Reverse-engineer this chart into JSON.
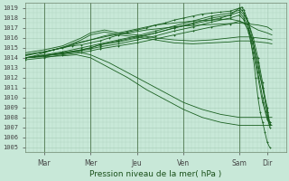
{
  "bg_color": "#c8e8d8",
  "grid_color": "#a8ceb8",
  "line_color": "#1a6020",
  "ylabel_ticks": [
    1005,
    1006,
    1007,
    1008,
    1009,
    1010,
    1011,
    1012,
    1013,
    1014,
    1015,
    1016,
    1017,
    1018,
    1019
  ],
  "xlabels": [
    "Mar",
    "Mer",
    "Jeu",
    "Ven",
    "Sam",
    "Dir"
  ],
  "xlabel": "Pression niveau de la mer( hPa )",
  "ymin": 1004.5,
  "ymax": 1019.5,
  "xmin": 0.0,
  "xmax": 5.6,
  "xtick_positions": [
    0.4,
    1.4,
    2.4,
    3.4,
    4.6,
    5.2
  ],
  "vline_positions": [
    0.4,
    1.4,
    2.4,
    3.4,
    4.6
  ],
  "series": [
    {
      "x": [
        0.0,
        0.2,
        0.4,
        0.6,
        0.8,
        1.0,
        1.2,
        1.4,
        1.6,
        1.8,
        2.0,
        2.2,
        2.4,
        2.6,
        2.8,
        3.0,
        3.2,
        3.4,
        3.6,
        3.8,
        4.0,
        4.2,
        4.4,
        4.6,
        4.65,
        4.7,
        4.75,
        4.8,
        4.85,
        4.9,
        4.95,
        5.0,
        5.05,
        5.1,
        5.15,
        5.2,
        5.25
      ],
      "y": [
        1014.0,
        1014.2,
        1014.5,
        1014.8,
        1015.0,
        1015.2,
        1015.3,
        1015.5,
        1015.7,
        1016.0,
        1016.3,
        1016.6,
        1016.8,
        1017.0,
        1017.3,
        1017.5,
        1017.8,
        1018.0,
        1018.2,
        1018.4,
        1018.5,
        1018.6,
        1018.7,
        1019.0,
        1018.8,
        1018.5,
        1018.0,
        1017.0,
        1015.5,
        1014.0,
        1012.0,
        1010.0,
        1008.5,
        1007.5,
        1006.5,
        1005.5,
        1005.0
      ],
      "marker": "+"
    },
    {
      "x": [
        0.0,
        0.4,
        0.8,
        1.2,
        1.4,
        1.6,
        2.0,
        2.4,
        2.8,
        3.2,
        3.6,
        4.0,
        4.4,
        4.6,
        4.7,
        4.8,
        4.9,
        5.0,
        5.1,
        5.2,
        5.25
      ],
      "y": [
        1014.0,
        1014.3,
        1014.6,
        1015.0,
        1015.2,
        1015.4,
        1015.8,
        1016.2,
        1016.7,
        1017.2,
        1017.7,
        1018.2,
        1018.5,
        1018.8,
        1018.3,
        1017.5,
        1016.0,
        1014.0,
        1011.5,
        1008.5,
        1007.5
      ],
      "marker": "+"
    },
    {
      "x": [
        0.0,
        0.4,
        0.8,
        1.2,
        1.4,
        1.6,
        2.0,
        2.4,
        2.8,
        3.2,
        3.6,
        4.0,
        4.4,
        4.6,
        4.7,
        4.8,
        4.9,
        5.0,
        5.1,
        5.2,
        5.25
      ],
      "y": [
        1014.0,
        1014.2,
        1014.5,
        1014.8,
        1015.0,
        1015.3,
        1015.6,
        1016.0,
        1016.5,
        1017.0,
        1017.5,
        1018.0,
        1018.3,
        1018.6,
        1018.0,
        1017.0,
        1015.0,
        1012.5,
        1010.0,
        1008.0,
        1007.2
      ],
      "marker": "+"
    },
    {
      "x": [
        0.0,
        0.4,
        0.8,
        1.2,
        1.4,
        1.6,
        2.0,
        2.4,
        2.8,
        3.2,
        3.6,
        4.0,
        4.4,
        4.6,
        4.7,
        4.8,
        4.9,
        5.0,
        5.1,
        5.2,
        5.25
      ],
      "y": [
        1014.0,
        1014.2,
        1014.4,
        1014.7,
        1014.9,
        1015.1,
        1015.4,
        1015.8,
        1016.2,
        1016.7,
        1017.1,
        1017.6,
        1018.0,
        1018.3,
        1017.8,
        1016.5,
        1014.5,
        1012.0,
        1009.5,
        1007.8,
        1007.3
      ],
      "marker": "+"
    },
    {
      "x": [
        0.0,
        0.4,
        0.8,
        1.2,
        1.4,
        1.6,
        2.0,
        2.4,
        2.8,
        3.2,
        3.6,
        4.0,
        4.4,
        4.6,
        4.7,
        4.8,
        4.9,
        5.0,
        5.1,
        5.2,
        5.25
      ],
      "y": [
        1013.8,
        1014.0,
        1014.3,
        1014.5,
        1014.7,
        1014.9,
        1015.2,
        1015.5,
        1015.9,
        1016.3,
        1016.7,
        1017.1,
        1017.4,
        1017.7,
        1017.5,
        1016.8,
        1015.5,
        1013.5,
        1011.0,
        1008.5,
        1007.0
      ],
      "marker": "+"
    },
    {
      "x": [
        0.0,
        0.4,
        0.8,
        1.2,
        1.4,
        1.6,
        2.0,
        2.4,
        2.8,
        3.2,
        3.6,
        4.0,
        4.2,
        4.4,
        4.6,
        4.65,
        4.7,
        4.8,
        4.9,
        5.0,
        5.1,
        5.2,
        5.25
      ],
      "y": [
        1014.0,
        1014.2,
        1014.5,
        1014.8,
        1015.0,
        1015.3,
        1015.7,
        1016.1,
        1016.5,
        1017.0,
        1017.4,
        1017.8,
        1018.0,
        1018.3,
        1019.0,
        1019.1,
        1018.8,
        1017.5,
        1015.5,
        1013.0,
        1011.0,
        1009.0,
        1007.5
      ],
      "marker": "+"
    },
    {
      "x": [
        0.0,
        0.3,
        0.6,
        0.9,
        1.1,
        1.4,
        1.7,
        2.0,
        2.4,
        2.8,
        3.2,
        3.6,
        4.0,
        4.4,
        4.6,
        4.8,
        5.0,
        5.2,
        5.3
      ],
      "y": [
        1014.2,
        1014.5,
        1014.8,
        1015.2,
        1015.5,
        1015.8,
        1016.2,
        1016.5,
        1016.9,
        1017.3,
        1017.5,
        1017.7,
        1017.8,
        1017.9,
        1017.7,
        1017.3,
        1016.8,
        1016.5,
        1016.3
      ],
      "marker": null
    },
    {
      "x": [
        0.0,
        0.4,
        0.8,
        1.1,
        1.4,
        1.8,
        2.2,
        2.6,
        3.0,
        3.4,
        3.8,
        4.2,
        4.6,
        4.8,
        5.0,
        5.2,
        5.3
      ],
      "y": [
        1014.3,
        1014.6,
        1015.0,
        1015.4,
        1015.8,
        1016.2,
        1016.5,
        1016.8,
        1017.0,
        1017.2,
        1017.3,
        1017.4,
        1017.5,
        1017.4,
        1017.3,
        1017.1,
        1016.8
      ],
      "marker": null
    },
    {
      "x": [
        0.0,
        0.4,
        0.8,
        1.0,
        1.2,
        1.4,
        1.7,
        2.0,
        2.4,
        2.8,
        3.2,
        3.6,
        4.0,
        4.4,
        4.6,
        4.8,
        5.0,
        5.2,
        5.3
      ],
      "y": [
        1014.5,
        1014.8,
        1015.2,
        1015.6,
        1016.0,
        1016.5,
        1016.8,
        1016.5,
        1016.3,
        1016.0,
        1015.8,
        1015.7,
        1015.8,
        1016.0,
        1016.1,
        1016.1,
        1016.0,
        1015.9,
        1015.8
      ],
      "marker": null
    },
    {
      "x": [
        0.0,
        0.4,
        0.8,
        1.0,
        1.2,
        1.4,
        1.7,
        2.0,
        2.4,
        2.8,
        3.2,
        3.6,
        4.0,
        4.4,
        4.6,
        4.8,
        5.0,
        5.2,
        5.3
      ],
      "y": [
        1014.3,
        1014.6,
        1015.0,
        1015.4,
        1015.8,
        1016.3,
        1016.6,
        1016.3,
        1016.1,
        1015.8,
        1015.5,
        1015.4,
        1015.5,
        1015.6,
        1015.7,
        1015.7,
        1015.6,
        1015.5,
        1015.4
      ],
      "marker": null
    },
    {
      "x": [
        0.0,
        0.4,
        0.8,
        1.1,
        1.4,
        1.8,
        2.2,
        2.6,
        3.0,
        3.4,
        3.8,
        4.2,
        4.6,
        4.8,
        5.0,
        5.2,
        5.3
      ],
      "y": [
        1014.0,
        1014.2,
        1014.4,
        1014.6,
        1014.3,
        1013.5,
        1012.5,
        1011.5,
        1010.5,
        1009.5,
        1008.8,
        1008.3,
        1008.0,
        1008.0,
        1008.0,
        1008.0,
        1008.0
      ],
      "marker": null
    },
    {
      "x": [
        0.0,
        0.4,
        0.8,
        1.1,
        1.4,
        1.8,
        2.2,
        2.6,
        3.0,
        3.4,
        3.8,
        4.2,
        4.6,
        4.8,
        5.0,
        5.2,
        5.3
      ],
      "y": [
        1014.0,
        1014.1,
        1014.2,
        1014.3,
        1014.0,
        1013.0,
        1012.0,
        1010.8,
        1009.8,
        1008.8,
        1008.0,
        1007.5,
        1007.2,
        1007.2,
        1007.2,
        1007.2,
        1007.2
      ],
      "marker": null
    }
  ]
}
